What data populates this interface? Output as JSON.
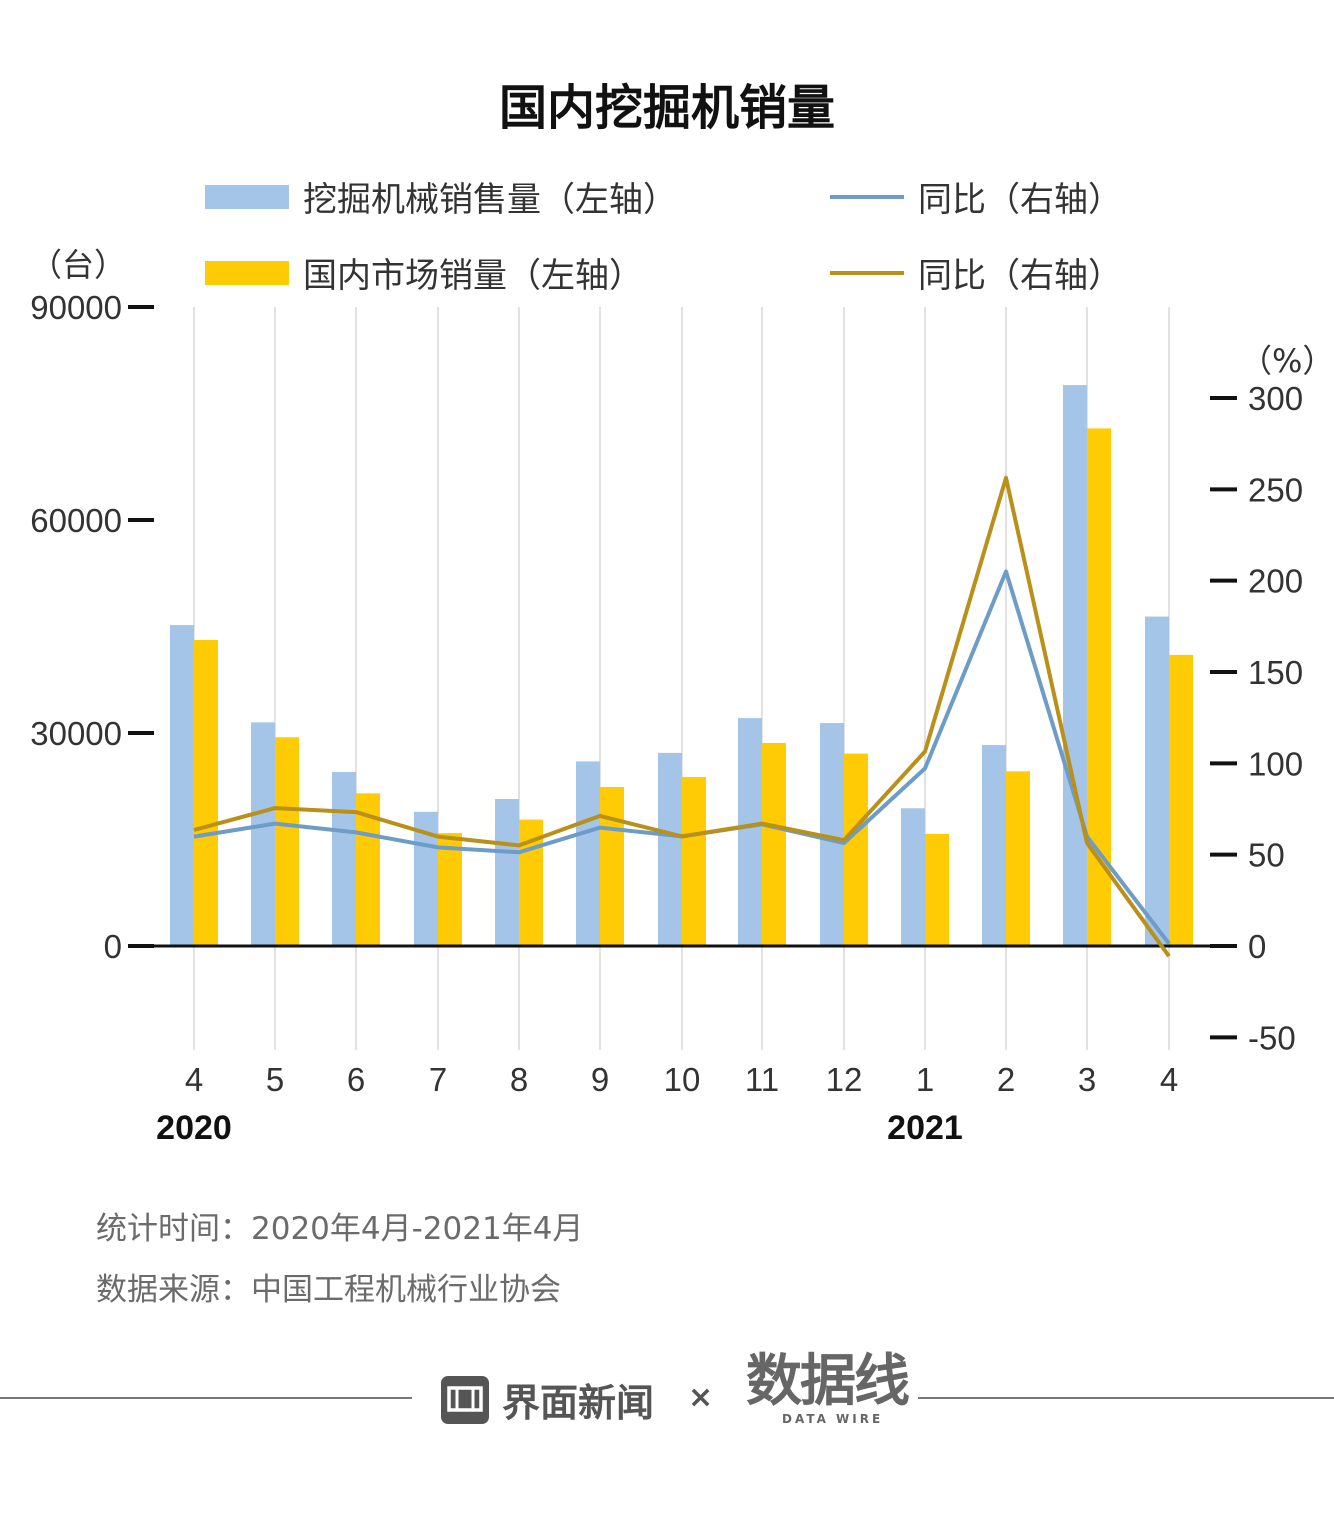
{
  "title": "国内挖掘机销量",
  "legend": [
    {
      "label": "挖掘机械销售量（左轴）",
      "kind": "bar",
      "color": "#a4c5e7"
    },
    {
      "label": "同比（右轴）",
      "kind": "line",
      "color": "#6d9cc6"
    },
    {
      "label": "国内市场销量（左轴）",
      "kind": "bar",
      "color": "#ffcb05"
    },
    {
      "label": "同比（右轴）",
      "kind": "line",
      "color": "#b8901a"
    }
  ],
  "units": {
    "left": "（台）",
    "right": "（%）"
  },
  "chart_data": {
    "type": "bar",
    "categories": [
      "4",
      "5",
      "6",
      "7",
      "8",
      "9",
      "10",
      "11",
      "12",
      "1",
      "2",
      "3",
      "4"
    ],
    "year_labels": [
      "2020",
      "2021"
    ],
    "left_axis": {
      "ticks": [
        "90000",
        "60000",
        "30000",
        "0"
      ],
      "ylim": [
        0,
        90000
      ]
    },
    "right_axis": {
      "ticks": [
        "300",
        "250",
        "200",
        "150",
        "100",
        "50",
        "0",
        "-50"
      ],
      "ylim": [
        -50,
        300
      ]
    },
    "series": [
      {
        "name": "挖掘机械销售量（左轴）",
        "axis": "left",
        "kind": "bar",
        "color": "#a4c5e7",
        "values": [
          45200,
          31500,
          24500,
          18900,
          20700,
          26000,
          27200,
          32100,
          31400,
          19400,
          28300,
          79000,
          46400
        ]
      },
      {
        "name": "国内市场销量（左轴）",
        "axis": "left",
        "kind": "bar",
        "color": "#ffcb05",
        "values": [
          43100,
          29400,
          21500,
          15900,
          17800,
          22400,
          23800,
          28600,
          27100,
          15800,
          24600,
          72900,
          41000
        ]
      },
      {
        "name": "同比（右轴）",
        "axis": "right",
        "kind": "line",
        "color": "#6d9cc6",
        "values": [
          59.9,
          67,
          62.2,
          54,
          51.3,
          64.8,
          60,
          66.6,
          56.4,
          97.2,
          205,
          59.9,
          1.3
        ]
      },
      {
        "name": "同比（右轴）",
        "axis": "right",
        "kind": "line",
        "color": "#b8901a",
        "values": [
          63.5,
          75.5,
          73.3,
          59.9,
          55.1,
          71.2,
          60,
          67,
          57.9,
          106.5,
          256.3,
          56.4,
          -5.6
        ]
      }
    ]
  },
  "footer": {
    "period": "统计时间：2020年4月-2021年4月",
    "source": "数据来源：中国工程机械行业协会"
  },
  "brand": {
    "name1": "界面新闻",
    "times": "×",
    "name2": "数据线",
    "name2_sub": "DATA WIRE"
  }
}
